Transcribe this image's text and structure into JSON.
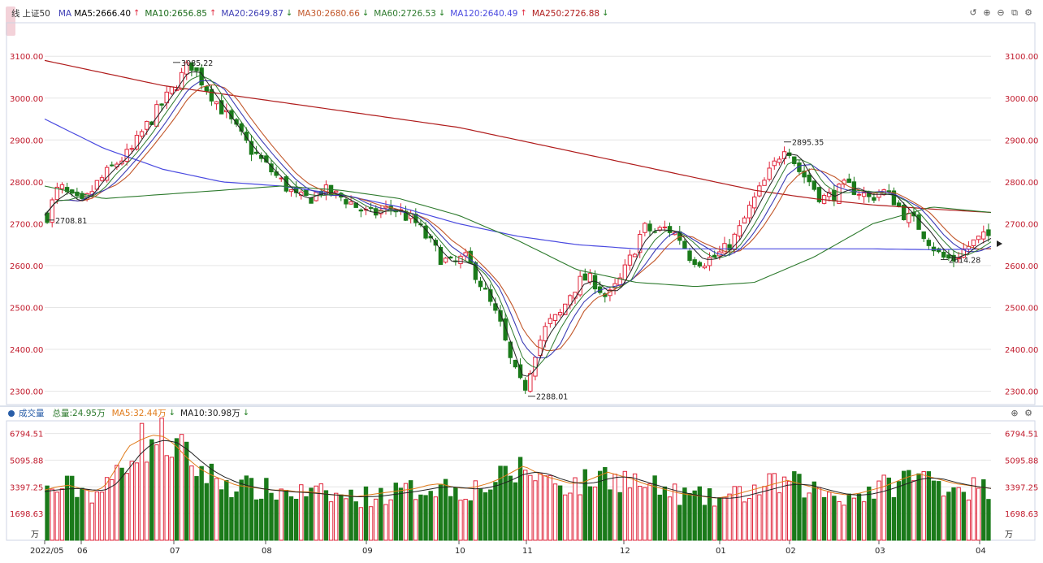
{
  "header": {
    "prefix": "线",
    "index_name": "上证50",
    "ma_label": "MA",
    "mas": [
      {
        "text": "MA5:2666.40",
        "color": "#000000",
        "dir": "up"
      },
      {
        "text": "MA10:2656.85",
        "color": "#1a6b1a",
        "dir": "up"
      },
      {
        "text": "MA20:2649.87",
        "color": "#3d3db5",
        "dir": "down"
      },
      {
        "text": "MA30:2680.66",
        "color": "#c2572a",
        "dir": "down"
      },
      {
        "text": "MA60:2726.53",
        "color": "#2d7a2d",
        "dir": "down"
      },
      {
        "text": "MA120:2640.49",
        "color": "#4a4ae0",
        "dir": "up"
      },
      {
        "text": "MA250:2726.88",
        "color": "#b01c1c",
        "dir": "down"
      }
    ]
  },
  "vol_header": {
    "title": "成交量",
    "total": "总量:24.95万",
    "mas": [
      {
        "text": "MA5:32.44万",
        "color": "#e07b1a",
        "dir": "down"
      },
      {
        "text": "MA10:30.98万",
        "color": "#222222",
        "dir": "down"
      }
    ]
  },
  "icons": {
    "up_arrow": "↑",
    "down_arrow": "↓",
    "toolbar": [
      "↺",
      "⊕",
      "⊖",
      "⧉",
      "⚙"
    ],
    "vol_tools": [
      "⊕",
      "⚙"
    ]
  },
  "colors": {
    "up": "#e0243a",
    "down": "#1a7a1a",
    "axis_text": "#c0182a",
    "grid": "#e6e6e6"
  },
  "chart_data": [
    {
      "type": "candlestick",
      "title": "上证50",
      "ylim": [
        2270,
        3180
      ],
      "y_ticks": [
        "3100.00",
        "3000.00",
        "2900.00",
        "2800.00",
        "2700.00",
        "2600.00",
        "2500.00",
        "2400.00",
        "2300.00"
      ],
      "y_tick_values": [
        3100,
        3000,
        2900,
        2800,
        2700,
        2600,
        2500,
        2400,
        2300
      ],
      "x_ticks": [
        "2022/05",
        "06",
        "07",
        "08",
        "09",
        "10",
        "11",
        "12",
        "01",
        "02",
        "03",
        "04"
      ],
      "close_path": [
        2720,
        2790,
        2760,
        2745,
        2790,
        2820,
        2850,
        2870,
        2920,
        2960,
        3000,
        3040,
        3085,
        3040,
        3000,
        2960,
        2920,
        2880,
        2850,
        2820,
        2790,
        2760,
        2760,
        2780,
        2770,
        2760,
        2740,
        2720,
        2730,
        2740,
        2720,
        2700,
        2660,
        2620,
        2600,
        2620,
        2580,
        2520,
        2460,
        2360,
        2300,
        2400,
        2460,
        2480,
        2540,
        2570,
        2560,
        2520,
        2560,
        2620,
        2690,
        2680,
        2690,
        2670,
        2620,
        2610,
        2620,
        2640,
        2680,
        2740,
        2790,
        2840,
        2895,
        2830,
        2800,
        2760,
        2770,
        2790,
        2780,
        2760,
        2780,
        2760,
        2720,
        2700,
        2660,
        2620,
        2614,
        2640,
        2660,
        2670
      ],
      "annotations": [
        {
          "text": "3085.22",
          "value": 3085.22
        },
        {
          "text": "2708.81",
          "value": 2708.81
        },
        {
          "text": "2288.01",
          "value": 2288.01
        },
        {
          "text": "2895.35",
          "value": 2895.35
        },
        {
          "text": "2614.28",
          "value": 2614.28
        }
      ],
      "ma_series": [
        {
          "name": "MA5",
          "color": "#222222",
          "end_value": 2666.4
        },
        {
          "name": "MA10",
          "color": "#2d7a2d",
          "end_value": 2656.85
        },
        {
          "name": "MA20",
          "color": "#3d3db5",
          "end_value": 2649.87
        },
        {
          "name": "MA30",
          "color": "#c2572a",
          "end_value": 2680.66
        },
        {
          "name": "MA60",
          "color": "#2d7a2d",
          "end_value": 2726.53
        },
        {
          "name": "MA120",
          "color": "#4a4ae0",
          "end_value": 2640.49
        },
        {
          "name": "MA250",
          "color": "#b01c1c",
          "end_value": 2726.88
        }
      ],
      "ma250_path": [
        3090,
        3060,
        3030,
        3010,
        2990,
        2970,
        2950,
        2930,
        2900,
        2870,
        2840,
        2810,
        2780,
        2760,
        2745,
        2735,
        2727
      ],
      "ma120_path": [
        2950,
        2880,
        2830,
        2800,
        2790,
        2770,
        2740,
        2700,
        2670,
        2650,
        2640,
        2640,
        2640,
        2640,
        2640,
        2638,
        2640
      ],
      "ma60_path": [
        2790,
        2760,
        2770,
        2780,
        2790,
        2780,
        2760,
        2720,
        2660,
        2590,
        2560,
        2550,
        2560,
        2620,
        2700,
        2740,
        2727
      ]
    },
    {
      "type": "bar",
      "title": "成交量",
      "ylim": [
        0,
        7600
      ],
      "y_ticks": [
        "6794.51",
        "5095.88",
        "3397.25",
        "1698.63"
      ],
      "y_tick_values": [
        6794.51,
        5095.88,
        3397.25,
        1698.63
      ],
      "unit_label": "万",
      "volume_path": [
        3100,
        3300,
        3400,
        3200,
        3000,
        3300,
        4500,
        5800,
        6200,
        6500,
        6400,
        5800,
        5000,
        4400,
        4000,
        3700,
        3400,
        3300,
        3200,
        3100,
        3100,
        3000,
        3000,
        2900,
        2800,
        2800,
        2700,
        2800,
        2900,
        3000,
        3100,
        3200,
        3400,
        3500,
        3300,
        3200,
        3300,
        3500,
        3800,
        4200,
        4600,
        4200,
        3900,
        3700,
        3500,
        3600,
        3900,
        4200,
        4000,
        3800,
        3500,
        3300,
        3100,
        2900,
        2800,
        2700,
        2600,
        2700,
        2900,
        3100,
        3300,
        3500,
        3700,
        3500,
        3300,
        3100,
        2900,
        2800,
        2900,
        3100,
        3300,
        3600,
        3900,
        4100,
        3900,
        3700,
        3500,
        3400,
        3300,
        3200
      ]
    }
  ]
}
